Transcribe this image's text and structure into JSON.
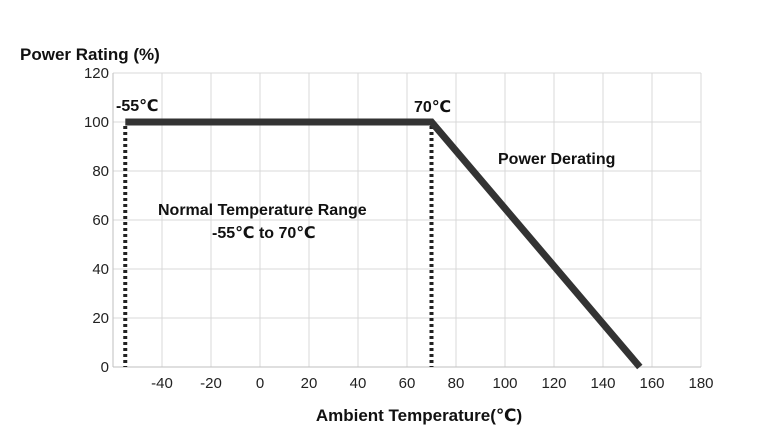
{
  "chart_data": {
    "type": "line",
    "title": "Power Rating (%)",
    "ylabel": "Power Rating (%)",
    "xlabel": "Ambient Temperature(℃)",
    "xlim": [
      -60,
      180
    ],
    "ylim": [
      0,
      120
    ],
    "x_ticks": [
      -40,
      -20,
      0,
      20,
      40,
      60,
      80,
      100,
      120,
      140,
      160,
      180
    ],
    "y_ticks": [
      0,
      20,
      40,
      60,
      80,
      100,
      120
    ],
    "grid": true,
    "series": [
      {
        "name": "Power Rating",
        "color": "#333333",
        "points": [
          {
            "x": -55,
            "y": 100
          },
          {
            "x": 70,
            "y": 100
          },
          {
            "x": 155,
            "y": 0
          }
        ]
      }
    ],
    "reference_lines": [
      {
        "x": -55,
        "style": "dotted"
      },
      {
        "x": 70,
        "style": "dotted"
      }
    ],
    "annotations": {
      "left_point": "-55℃",
      "right_point": "70℃",
      "derating": "Power Derating",
      "range_title": "Normal Temperature Range",
      "range_span": "-55℃ to 70℃"
    }
  }
}
